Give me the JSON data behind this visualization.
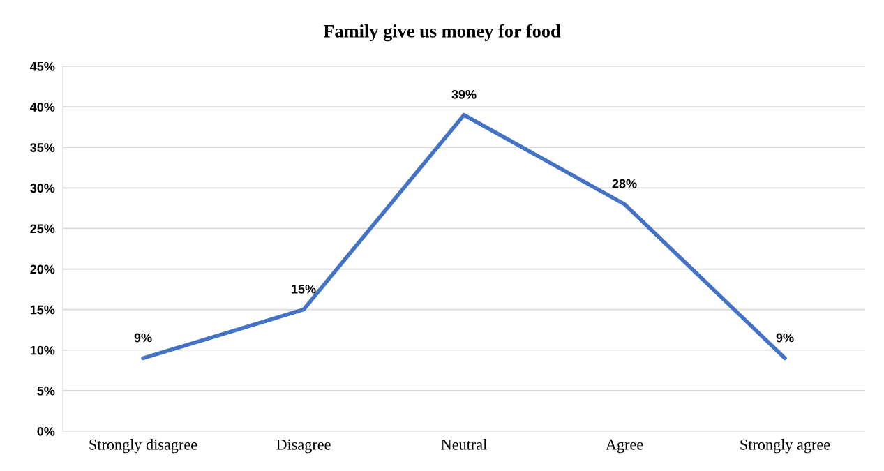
{
  "chart_data": {
    "type": "line",
    "title": "Family give us money for food",
    "categories": [
      "Strongly disagree",
      "Disagree",
      "Neutral",
      "Agree",
      "Strongly agree"
    ],
    "series": [
      {
        "color": "#4472c4",
        "values": [
          9,
          15,
          39,
          28,
          9
        ],
        "value_labels": [
          "9%",
          "15%",
          "39%",
          "28%",
          "9%"
        ]
      }
    ],
    "ylim": [
      0,
      45
    ],
    "yticks": [
      {
        "value": 0,
        "label": "0%"
      },
      {
        "value": 5,
        "label": "5%"
      },
      {
        "value": 10,
        "label": "10%"
      },
      {
        "value": 15,
        "label": "15%"
      },
      {
        "value": 20,
        "label": "20%"
      },
      {
        "value": 25,
        "label": "25%"
      },
      {
        "value": 30,
        "label": "30%"
      },
      {
        "value": 35,
        "label": "35%"
      },
      {
        "value": 40,
        "label": "40%"
      },
      {
        "value": 45,
        "label": "45%"
      }
    ],
    "grid": "y",
    "marker": "none",
    "line_style": "solid"
  }
}
